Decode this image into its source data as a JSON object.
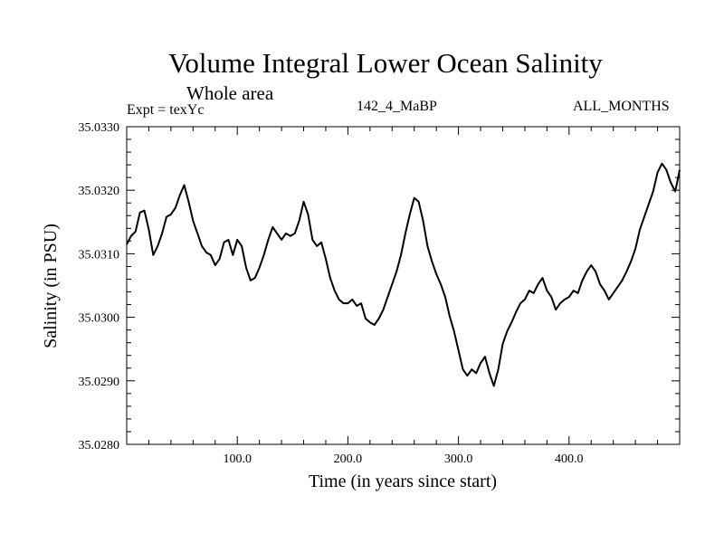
{
  "header": {
    "title": "Volume Integral Lower Ocean Salinity",
    "subtitle": "Whole area",
    "experiment": "Expt = texYc",
    "run": "142_4_MaBP",
    "months": "ALL_MONTHS"
  },
  "chart_data": {
    "type": "line",
    "title": "Volume Integral Lower Ocean Salinity",
    "subtitle": "Whole area",
    "xlabel": "Time (in years since start)",
    "ylabel": "Salinity (in PSU)",
    "xlim": [
      0,
      500
    ],
    "ylim": [
      35.028,
      35.033
    ],
    "xticks": [
      100,
      200,
      300,
      400
    ],
    "xtick_labels": [
      "100.0",
      "200.0",
      "300.0",
      "400.0"
    ],
    "yticks": [
      35.028,
      35.029,
      35.03,
      35.031,
      35.032,
      35.033
    ],
    "ytick_labels": [
      "35.0280",
      "35.0290",
      "35.0300",
      "35.0310",
      "35.0320",
      "35.0330"
    ],
    "grid": false,
    "legend": "none",
    "color": "#000000",
    "series": [
      {
        "x": [
          0,
          4,
          8,
          12,
          16,
          20,
          24,
          28,
          32,
          36,
          40,
          44,
          48,
          52,
          56,
          60,
          64,
          68,
          72,
          76,
          80,
          84,
          88,
          92,
          96,
          100,
          104,
          108,
          112,
          116,
          120,
          124,
          128,
          132,
          136,
          140,
          144,
          148,
          152,
          156,
          160,
          164,
          168,
          172,
          176,
          180,
          184,
          188,
          192,
          196,
          200,
          204,
          208,
          212,
          216,
          220,
          224,
          228,
          232,
          236,
          240,
          244,
          248,
          252,
          256,
          260,
          264,
          268,
          272,
          276,
          280,
          284,
          288,
          292,
          296,
          300,
          304,
          308,
          312,
          316,
          320,
          324,
          328,
          332,
          336,
          340,
          344,
          348,
          352,
          356,
          360,
          364,
          368,
          372,
          376,
          380,
          384,
          388,
          392,
          396,
          400,
          404,
          408,
          412,
          416,
          420,
          424,
          428,
          432,
          436,
          440,
          444,
          448,
          452,
          456,
          460,
          464,
          468,
          472,
          476,
          480,
          484,
          488,
          492,
          496,
          500
        ],
        "values": [
          35.03115,
          35.03128,
          35.03135,
          35.03165,
          35.03168,
          35.03138,
          35.03098,
          35.03112,
          35.03132,
          35.03158,
          35.03162,
          35.03172,
          35.03192,
          35.03208,
          35.03182,
          35.03152,
          35.03132,
          35.03112,
          35.03102,
          35.03098,
          35.03082,
          35.03092,
          35.03118,
          35.03122,
          35.03098,
          35.03122,
          35.03112,
          35.03078,
          35.03058,
          35.03062,
          35.03078,
          35.03098,
          35.03122,
          35.03142,
          35.03132,
          35.03122,
          35.03132,
          35.03128,
          35.03132,
          35.03152,
          35.03182,
          35.03162,
          35.03122,
          35.03112,
          35.03118,
          35.03092,
          35.03062,
          35.03042,
          35.03028,
          35.03022,
          35.03022,
          35.03028,
          35.03018,
          35.03022,
          35.02998,
          35.02992,
          35.02988,
          35.02998,
          35.03012,
          35.03032,
          35.03052,
          35.03072,
          35.03098,
          35.03132,
          35.03162,
          35.03188,
          35.03182,
          35.03152,
          35.03112,
          35.03088,
          35.03068,
          35.03052,
          35.03032,
          35.03002,
          35.02978,
          35.02948,
          35.02918,
          35.02908,
          35.02918,
          35.02912,
          35.02928,
          35.02938,
          35.02912,
          35.02892,
          35.02918,
          35.02958,
          35.02978,
          35.02992,
          35.03008,
          35.03022,
          35.03028,
          35.03042,
          35.03038,
          35.03052,
          35.03062,
          35.03042,
          35.03032,
          35.03012,
          35.03022,
          35.03028,
          35.03032,
          35.03042,
          35.03038,
          35.03058,
          35.03072,
          35.03082,
          35.03072,
          35.03052,
          35.03042,
          35.03028,
          35.03038,
          35.03048,
          35.03058,
          35.03072,
          35.03088,
          35.03108,
          35.03138,
          35.03158,
          35.03178,
          35.03198,
          35.03228,
          35.03242,
          35.03232,
          35.03212,
          35.03198,
          35.03232
        ]
      }
    ]
  }
}
